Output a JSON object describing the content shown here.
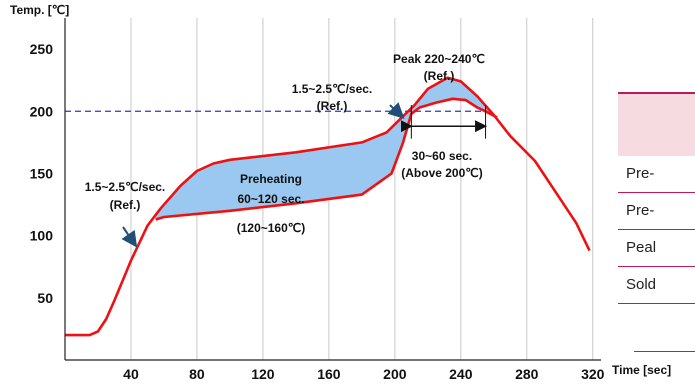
{
  "chart_data": {
    "type": "line",
    "y_title": "Temp. [℃]",
    "x_title": "Time [sec]",
    "xlim": [
      0,
      325
    ],
    "ylim": [
      0,
      275
    ],
    "x_ticks": [
      40,
      80,
      120,
      160,
      200,
      240,
      280,
      320
    ],
    "y_ticks": [
      50,
      100,
      150,
      200,
      250
    ],
    "grid": "vertical",
    "reference_line": {
      "y": 200,
      "style": "dashed",
      "color": "#3333cc"
    },
    "series": [
      {
        "color": "#ee1111",
        "points": [
          [
            0,
            20
          ],
          [
            15,
            20
          ],
          [
            20,
            23
          ],
          [
            25,
            33
          ],
          [
            30,
            48
          ],
          [
            40,
            80
          ],
          [
            50,
            108
          ],
          [
            58,
            122
          ],
          [
            70,
            140
          ],
          [
            80,
            152
          ],
          [
            90,
            158
          ],
          [
            100,
            161
          ],
          [
            140,
            167
          ],
          [
            180,
            175
          ],
          [
            195,
            183
          ],
          [
            205,
            196
          ],
          [
            212,
            205
          ],
          [
            220,
            218
          ],
          [
            232,
            227
          ],
          [
            240,
            224
          ],
          [
            250,
            212
          ],
          [
            260,
            197
          ],
          [
            270,
            180
          ],
          [
            285,
            160
          ],
          [
            300,
            130
          ],
          [
            310,
            110
          ],
          [
            318,
            88
          ]
        ]
      },
      {
        "color": "#ee1111",
        "points": [
          [
            55,
            113
          ],
          [
            60,
            115
          ],
          [
            100,
            120
          ],
          [
            140,
            126
          ],
          [
            180,
            133
          ],
          [
            198,
            150
          ],
          [
            205,
            175
          ],
          [
            210,
            198
          ],
          [
            215,
            203
          ],
          [
            225,
            207
          ],
          [
            235,
            210
          ],
          [
            243,
            209
          ],
          [
            250,
            203
          ],
          [
            255,
            200
          ],
          [
            262,
            195
          ]
        ]
      }
    ],
    "fills": [
      {
        "color": "#9ac8f0",
        "bounds": "area between upper and lower profile, x 55-210 (preheating zone)"
      },
      {
        "color": "#9ac8f0",
        "bounds": "area between peak curves, x 210-257"
      }
    ],
    "range_arrow": {
      "x_start": 210,
      "x_end": 255,
      "y": 188,
      "label_lines": [
        "30~60 sec.",
        "(Above 200℃)"
      ]
    },
    "annotations": [
      {
        "lines": [
          "Peak 220~240℃",
          "(Ref.)"
        ]
      },
      {
        "lines": [
          "1.5~2.5℃/sec.",
          "(Ref.)"
        ],
        "arrow": true
      },
      {
        "lines": [
          "1.5~2.5℃/sec.",
          "(Ref.)"
        ],
        "arrow": true
      },
      {
        "lines": [
          "Preheating",
          "60~120 sec."
        ]
      },
      {
        "lines": [
          "(120~160℃)"
        ]
      }
    ]
  },
  "side_table": {
    "rows": [
      "Pre-",
      "Pre-",
      "Peal",
      "Sold"
    ]
  }
}
